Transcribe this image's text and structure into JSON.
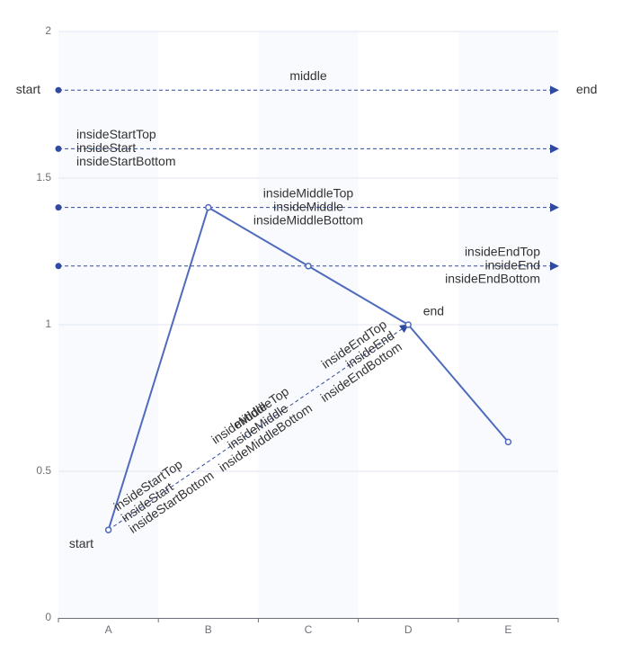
{
  "chart_data": {
    "type": "line",
    "categories": [
      "A",
      "B",
      "C",
      "D",
      "E"
    ],
    "ylim": [
      0,
      2
    ],
    "y_ticks": [
      0,
      0.5,
      1,
      1.5,
      2
    ],
    "grid": true,
    "split_area": true,
    "series": [
      {
        "values": [
          0.3,
          1.4,
          1.2,
          1.0,
          0.6
        ]
      }
    ],
    "markLines": [
      {
        "from": {
          "x": "A",
          "y": 1.8
        },
        "to": {
          "x": "E",
          "y": 1.8
        },
        "extent": "full-width",
        "labels": [
          {
            "position": "start",
            "text": "start"
          },
          {
            "position": "middle",
            "text": "middle"
          },
          {
            "position": "end",
            "text": "end"
          }
        ]
      },
      {
        "from": {
          "x": "A",
          "y": 1.6
        },
        "to": {
          "x": "E",
          "y": 1.6
        },
        "extent": "full-width",
        "labels": [
          {
            "position": "insideStartTop",
            "text": "insideStartTop"
          },
          {
            "position": "insideStart",
            "text": "insideStart"
          },
          {
            "position": "insideStartBottom",
            "text": "insideStartBottom"
          }
        ]
      },
      {
        "from": {
          "x": "A",
          "y": 1.4
        },
        "to": {
          "x": "E",
          "y": 1.4
        },
        "extent": "full-width",
        "labels": [
          {
            "position": "insideMiddleTop",
            "text": "insideMiddleTop"
          },
          {
            "position": "insideMiddle",
            "text": "insideMiddle"
          },
          {
            "position": "insideMiddleBottom",
            "text": "insideMiddleBottom"
          }
        ]
      },
      {
        "from": {
          "x": "A",
          "y": 1.2
        },
        "to": {
          "x": "E",
          "y": 1.2
        },
        "extent": "full-width",
        "labels": [
          {
            "position": "insideEndTop",
            "text": "insideEndTop"
          },
          {
            "position": "insideEnd",
            "text": "insideEnd"
          },
          {
            "position": "insideEndBottom",
            "text": "insideEndBottom"
          }
        ]
      },
      {
        "from": {
          "x": "A",
          "y": 0.3
        },
        "to": {
          "x": "D",
          "y": 1.0
        },
        "extent": "points",
        "labels": [
          {
            "position": "start",
            "text": "start"
          },
          {
            "position": "insideStartTop",
            "text": "insideStartTop"
          },
          {
            "position": "insideStart",
            "text": "insideStart"
          },
          {
            "position": "insideStartBottom",
            "text": "insideStartBottom"
          },
          {
            "position": "insideMiddleTop",
            "text": "insideMiddleTop"
          },
          {
            "position": "insideMiddle",
            "text": "insideMiddle"
          },
          {
            "position": "middle",
            "text": "middle"
          },
          {
            "position": "insideMiddleBottom",
            "text": "insideMiddleBottom"
          },
          {
            "position": "insideEndTop",
            "text": "insideEndTop"
          },
          {
            "position": "insideEnd",
            "text": "insideEnd"
          },
          {
            "position": "insideEndBottom",
            "text": "insideEndBottom"
          },
          {
            "position": "end",
            "text": "end"
          }
        ]
      }
    ],
    "colors": {
      "series": "#4f6bbd",
      "markline": "#2f4aa0",
      "grid": "#e0e6f1",
      "axis": "#6e7079",
      "split_area": "#f4f6fb",
      "text": "#333333"
    }
  }
}
